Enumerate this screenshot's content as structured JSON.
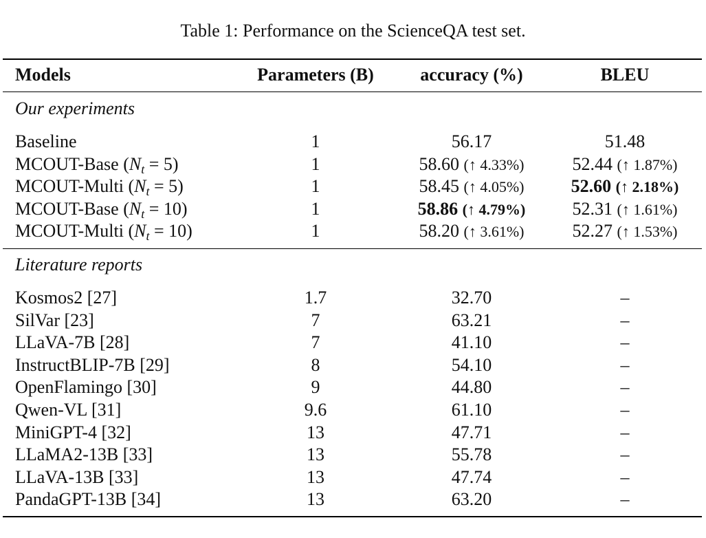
{
  "caption": "Table 1: Performance on the ScienceQA test set.",
  "headers": [
    "Models",
    "Parameters (B)",
    "accuracy (%)",
    "BLEU"
  ],
  "sections": [
    {
      "title": "Our experiments",
      "rows": [
        {
          "prefix": "Baseline",
          "nt": "",
          "suffix": "",
          "params": "1",
          "acc": "56.17",
          "acc_imp": "",
          "acc_bold": false,
          "bleu": "51.48",
          "bleu_imp": "",
          "bleu_bold": false
        },
        {
          "prefix": "MCOUT-Base (",
          "nt": "5",
          "suffix": ")",
          "params": "1",
          "acc": "58.60",
          "acc_imp": "(↑ 4.33%)",
          "acc_bold": false,
          "bleu": "52.44",
          "bleu_imp": "(↑ 1.87%)",
          "bleu_bold": false
        },
        {
          "prefix": "MCOUT-Multi (",
          "nt": "5",
          "suffix": ")",
          "params": "1",
          "acc": "58.45",
          "acc_imp": "(↑ 4.05%)",
          "acc_bold": false,
          "bleu": "52.60",
          "bleu_imp": "(↑ 2.18%)",
          "bleu_bold": true
        },
        {
          "prefix": "MCOUT-Base (",
          "nt": "10",
          "suffix": ")",
          "params": "1",
          "acc": "58.86",
          "acc_imp": "(↑ 4.79%)",
          "acc_bold": true,
          "bleu": "52.31",
          "bleu_imp": "(↑ 1.61%)",
          "bleu_bold": false
        },
        {
          "prefix": "MCOUT-Multi (",
          "nt": "10",
          "suffix": ")",
          "params": "1",
          "acc": "58.20",
          "acc_imp": "(↑ 3.61%)",
          "acc_bold": false,
          "bleu": "52.27",
          "bleu_imp": "(↑ 1.53%)",
          "bleu_bold": false
        }
      ]
    },
    {
      "title": "Literature reports",
      "rows": [
        {
          "prefix": "Kosmos2 [27]",
          "nt": "",
          "suffix": "",
          "params": "1.7",
          "acc": "32.70",
          "acc_imp": "",
          "acc_bold": false,
          "bleu": "–",
          "bleu_imp": "",
          "bleu_bold": false
        },
        {
          "prefix": "SilVar [23]",
          "nt": "",
          "suffix": "",
          "params": "7",
          "acc": "63.21",
          "acc_imp": "",
          "acc_bold": false,
          "bleu": "–",
          "bleu_imp": "",
          "bleu_bold": false
        },
        {
          "prefix": "LLaVA-7B [28]",
          "nt": "",
          "suffix": "",
          "params": "7",
          "acc": "41.10",
          "acc_imp": "",
          "acc_bold": false,
          "bleu": "–",
          "bleu_imp": "",
          "bleu_bold": false
        },
        {
          "prefix": "InstructBLIP-7B [29]",
          "nt": "",
          "suffix": "",
          "params": "8",
          "acc": "54.10",
          "acc_imp": "",
          "acc_bold": false,
          "bleu": "–",
          "bleu_imp": "",
          "bleu_bold": false
        },
        {
          "prefix": "OpenFlamingo [30]",
          "nt": "",
          "suffix": "",
          "params": "9",
          "acc": "44.80",
          "acc_imp": "",
          "acc_bold": false,
          "bleu": "–",
          "bleu_imp": "",
          "bleu_bold": false
        },
        {
          "prefix": "Qwen-VL [31]",
          "nt": "",
          "suffix": "",
          "params": "9.6",
          "acc": "61.10",
          "acc_imp": "",
          "acc_bold": false,
          "bleu": "–",
          "bleu_imp": "",
          "bleu_bold": false
        },
        {
          "prefix": "MiniGPT-4 [32]",
          "nt": "",
          "suffix": "",
          "params": "13",
          "acc": "47.71",
          "acc_imp": "",
          "acc_bold": false,
          "bleu": "–",
          "bleu_imp": "",
          "bleu_bold": false
        },
        {
          "prefix": "LLaMA2-13B [33]",
          "nt": "",
          "suffix": "",
          "params": "13",
          "acc": "55.78",
          "acc_imp": "",
          "acc_bold": false,
          "bleu": "–",
          "bleu_imp": "",
          "bleu_bold": false
        },
        {
          "prefix": "LLaVA-13B [33]",
          "nt": "",
          "suffix": "",
          "params": "13",
          "acc": "47.74",
          "acc_imp": "",
          "acc_bold": false,
          "bleu": "–",
          "bleu_imp": "",
          "bleu_bold": false
        },
        {
          "prefix": "PandaGPT-13B [34]",
          "nt": "",
          "suffix": "",
          "params": "13",
          "acc": "63.20",
          "acc_imp": "",
          "acc_bold": false,
          "bleu": "–",
          "bleu_imp": "",
          "bleu_bold": false
        }
      ]
    }
  ]
}
